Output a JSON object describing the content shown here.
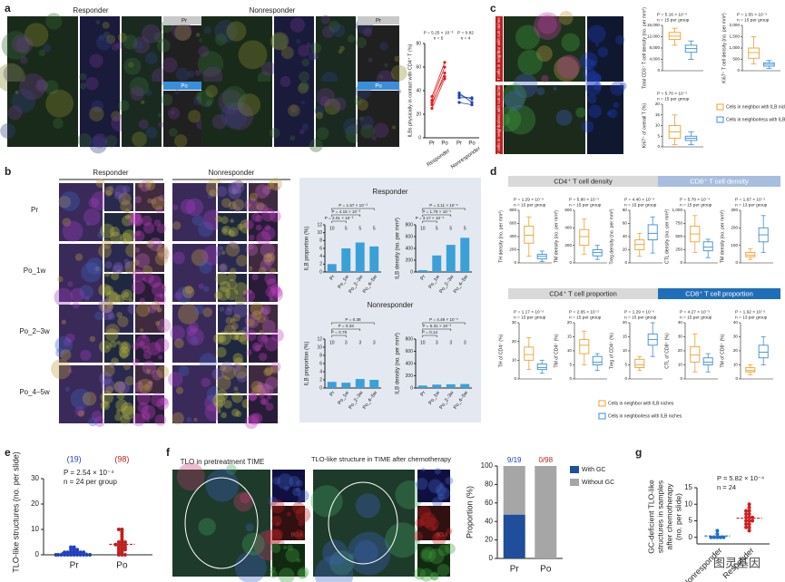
{
  "panel_labels": [
    "a",
    "b",
    "c",
    "d",
    "e",
    "f",
    "g"
  ],
  "box_legend": [
    "Cells in neighbor with ILB niches",
    "Cells in neighborless with ILB niches"
  ],
  "box_colors": [
    "#f0a030",
    "#3a8fd8"
  ],
  "a": {
    "responder": "Responder",
    "nonresponder": "Nonresponder",
    "tags": [
      "Pr",
      "Po"
    ],
    "chart": {
      "type": "line",
      "ylabel": "ILBs physically in contact with CD4⁺ T (%)",
      "categories": [
        "Pr",
        "Po",
        "Pr",
        "Po"
      ],
      "groups": [
        "Responder",
        "Nonresponder"
      ],
      "pvalues": [
        "P = 5.25 × 10⁻³",
        "P = 0.82"
      ],
      "n": [
        "n = 5",
        "n = 4"
      ],
      "ylim": [
        0,
        80
      ],
      "yticks": [
        0,
        20,
        40,
        60,
        80
      ],
      "colors": [
        "#e02020",
        "#2040c0"
      ],
      "responder_pairs": [
        [
          28,
          55
        ],
        [
          32,
          60
        ],
        [
          25,
          50
        ],
        [
          35,
          64
        ],
        [
          30,
          52
        ]
      ],
      "nonresponder_pairs": [
        [
          38,
          30
        ],
        [
          34,
          34
        ],
        [
          30,
          28
        ],
        [
          36,
          33
        ]
      ]
    }
  },
  "b": {
    "responder": "Responder",
    "nonresponder": "Nonresponder",
    "rows": [
      "Pr",
      "Po_1w",
      "Po_2–3w",
      "Po_4–5w"
    ],
    "categories": [
      "Pr",
      "Po_1w",
      "Po_2–3w",
      "Po_4–5w"
    ],
    "bar_color": "#3aa0d8",
    "charts": [
      {
        "type": "bar",
        "group": "Responder",
        "ylabel": "ILB proportion (%)",
        "ylim": [
          0,
          12
        ],
        "yticks": [
          0,
          2,
          4,
          6,
          8,
          10,
          12
        ],
        "values": [
          2,
          6,
          7.5,
          6.5
        ],
        "n": [
          10,
          5,
          5,
          5
        ],
        "pvalues": [
          "P = 1.57 × 10⁻³",
          "P = 4.15 × 10⁻³",
          "P = 2.01 × 10⁻³"
        ]
      },
      {
        "type": "bar",
        "group": "Responder",
        "ylabel": "ILB density (no. per mm²)",
        "ylim": [
          0,
          800
        ],
        "yticks": [
          0,
          200,
          400,
          600,
          800
        ],
        "values": [
          30,
          280,
          460,
          580
        ],
        "n": [
          10,
          5,
          5,
          5
        ],
        "pvalues": [
          "P = 2.11 × 10⁻⁶",
          "P = 1.79 × 10⁻⁶",
          "P = 3.17 × 10⁻⁶"
        ]
      },
      {
        "type": "bar",
        "group": "Nonresponder",
        "ylabel": "ILB proportion (%)",
        "ylim": [
          0,
          12
        ],
        "yticks": [
          0,
          2,
          4,
          6,
          8,
          10,
          12
        ],
        "values": [
          1.5,
          1.3,
          2.2,
          2.0
        ],
        "n": [
          10,
          3,
          3,
          3
        ],
        "pvalues": [
          "P = 0.38",
          "P = 0.33",
          "P = 0.79"
        ]
      },
      {
        "type": "bar",
        "group": "Nonresponder",
        "ylabel": "ILB density (no. per mm²)",
        "ylim": [
          0,
          800
        ],
        "yticks": [
          0,
          200,
          400,
          600,
          800
        ],
        "values": [
          40,
          55,
          60,
          65
        ],
        "n": [
          10,
          3,
          3,
          3
        ],
        "pvalues": [
          "P = 4.49 × 10⁻⁵",
          "P = 5.31 × 10⁻³",
          "P = 0.14"
        ]
      }
    ]
  },
  "c": {
    "side_labels": [
      "T cells in neighbor with ILB niches",
      "T cells in neighborless with ILB niches"
    ],
    "charts": [
      {
        "type": "box",
        "ylabel": "Total CD3⁺ T cell density (no. per mm²)",
        "p": "P = 5.16 × 10⁻⁶",
        "n": "n = 15 per group",
        "ylim": [
          0,
          16000
        ],
        "yticks": [
          0,
          {
            "value": 4000,
            "label": "4,000"
          },
          {
            "value": 8000,
            "label": "8,000"
          },
          {
            "value": 12000,
            "label": "12,000"
          },
          {
            "value": 16000,
            "label": "16,000"
          }
        ],
        "boxes": [
          {
            "min": 9000,
            "q1": 11000,
            "median": 12200,
            "q3": 13500,
            "max": 15000
          },
          {
            "min": 4000,
            "q1": 6500,
            "median": 7800,
            "q3": 9000,
            "max": 10500
          }
        ]
      },
      {
        "type": "box",
        "ylabel": "Ki67⁺ T cell density (no. per mm²)",
        "p": "P = 1.55 × 10⁻⁵",
        "n": "n = 15 per group",
        "ylim": [
          0,
          2000
        ],
        "yticks": [
          0,
          500,
          {
            "value": 1000,
            "label": "1,000"
          },
          {
            "value": 1500,
            "label": "1,500"
          },
          {
            "value": 2000,
            "label": "2,000"
          }
        ],
        "boxes": [
          {
            "min": 300,
            "q1": 550,
            "median": 800,
            "q3": 1000,
            "max": 1500
          },
          {
            "min": 100,
            "q1": 200,
            "median": 280,
            "q3": 350,
            "max": 450
          }
        ]
      },
      {
        "type": "box",
        "ylabel": "Ki67⁺ of overall T (%)",
        "p": "P = 5.70 × 10⁻⁵",
        "n": "n = 15 per group",
        "ylim": [
          0,
          20
        ],
        "yticks": [
          0,
          5,
          10,
          15,
          20
        ],
        "boxes": [
          {
            "min": 1,
            "q1": 4,
            "median": 7,
            "q3": 10,
            "max": 15
          },
          {
            "min": 1,
            "q1": 3,
            "median": 4,
            "q3": 5,
            "max": 7
          }
        ]
      }
    ]
  },
  "d": {
    "headers": [
      "CD4⁺ T cell density",
      "CD8⁺ T cell density",
      "CD4⁺ T cell proportion",
      "CD8⁺ T cell proportion"
    ],
    "charts": [
      {
        "type": "box",
        "ylabel": "TH density (no. per mm²)",
        "p": "P = 1.29 × 10⁻⁶",
        "n": "n = 15 per group",
        "ylim": [
          0,
          800
        ],
        "yticks": [
          0,
          200,
          400,
          600,
          800
        ],
        "boxes": [
          {
            "min": 100,
            "q1": 300,
            "median": 420,
            "q3": 560,
            "max": 700
          },
          {
            "min": 20,
            "q1": 60,
            "median": 100,
            "q3": 130,
            "max": 180
          }
        ]
      },
      {
        "type": "box",
        "ylabel": "TM density (no. per mm²)",
        "p": "P = 5.80 × 10⁻⁵",
        "n": "n = 15 per group",
        "ylim": [
          0,
          600
        ],
        "yticks": [
          0,
          200,
          400,
          600
        ],
        "boxes": [
          {
            "min": 100,
            "q1": 200,
            "median": 300,
            "q3": 380,
            "max": 500
          },
          {
            "min": 40,
            "q1": 80,
            "median": 120,
            "q3": 150,
            "max": 200
          }
        ]
      },
      {
        "type": "box",
        "ylabel": "Treg density (no. per mm²)",
        "p": "P = 4.40 × 10⁻⁵",
        "n": "n = 15 per group",
        "ylim": [
          0,
          80
        ],
        "yticks": [
          0,
          20,
          40,
          60,
          80
        ],
        "boxes": [
          {
            "min": 10,
            "q1": 20,
            "median": 28,
            "q3": 35,
            "max": 45
          },
          {
            "min": 15,
            "q1": 35,
            "median": 45,
            "q3": 58,
            "max": 70
          }
        ]
      },
      {
        "type": "box",
        "ylabel": "CTL density (no. per mm²)",
        "p": "P = 5.78 × 10⁻⁴",
        "n": "n = 15 per group",
        "ylim": [
          0,
          1000
        ],
        "yticks": [
          0,
          250,
          500,
          750,
          {
            "value": 1000,
            "label": "1,000"
          }
        ],
        "boxes": [
          {
            "min": 200,
            "q1": 400,
            "median": 550,
            "q3": 700,
            "max": 900
          },
          {
            "min": 100,
            "q1": 230,
            "median": 300,
            "q3": 400,
            "max": 450
          }
        ]
      },
      {
        "type": "box",
        "ylabel": "TM density (no. per mm²)",
        "p": "P = 1.67 × 10⁻⁵",
        "n": "n = 13 per group",
        "ylim": [
          0,
          300
        ],
        "yticks": [
          0,
          100,
          200,
          300
        ],
        "boxes": [
          {
            "min": 20,
            "q1": 35,
            "median": 45,
            "q3": 60,
            "max": 80
          },
          {
            "min": 60,
            "q1": 120,
            "median": 160,
            "q3": 200,
            "max": 270
          }
        ]
      },
      {
        "type": "box",
        "ylabel": "TH of CD4⁺ (%)",
        "p": "P = 1.17 × 10⁻⁶",
        "n": "n = 15 per group",
        "ylim": [
          0,
          30
        ],
        "yticks": [
          0,
          10,
          20,
          30
        ],
        "boxes": [
          {
            "min": 5,
            "q1": 10,
            "median": 13,
            "q3": 17,
            "max": 22
          },
          {
            "min": 3,
            "q1": 5,
            "median": 6,
            "q3": 8,
            "max": 10
          }
        ]
      },
      {
        "type": "box",
        "ylabel": "TM of CD4⁺ (%)",
        "p": "P = 2.65 × 10⁻⁵",
        "n": "n = 15 per group",
        "ylim": [
          0,
          20
        ],
        "yticks": [
          0,
          5,
          10,
          15,
          20
        ],
        "boxes": [
          {
            "min": 5,
            "q1": 9,
            "median": 12,
            "q3": 14,
            "max": 17
          },
          {
            "min": 3,
            "q1": 5,
            "median": 6,
            "q3": 8,
            "max": 9
          }
        ]
      },
      {
        "type": "box",
        "ylabel": "Treg of CD4⁺ (%)",
        "p": "P = 1.29 × 10⁻⁶",
        "n": "n = 15 per group",
        "ylim": [
          0,
          20
        ],
        "yticks": [
          0,
          5,
          10,
          15,
          20
        ],
        "boxes": [
          {
            "min": 3,
            "q1": 4,
            "median": 5,
            "q3": 7,
            "max": 8
          },
          {
            "min": 8,
            "q1": 12,
            "median": 14,
            "q3": 16,
            "max": 20
          }
        ]
      },
      {
        "type": "box",
        "ylabel": "CTL of CD8⁺ (%)",
        "p": "P = 4.27 × 10⁻⁵",
        "n": "n = 15 per group",
        "ylim": [
          0,
          40
        ],
        "yticks": [
          0,
          10,
          20,
          30,
          40
        ],
        "boxes": [
          {
            "min": 5,
            "q1": 12,
            "median": 17,
            "q3": 23,
            "max": 32
          },
          {
            "min": 5,
            "q1": 10,
            "median": 12,
            "q3": 15,
            "max": 18
          }
        ]
      },
      {
        "type": "box",
        "ylabel": "TM of CD8⁺ (%)",
        "p": "P = 1.92 × 10⁻⁵",
        "n": "n = 13 per group",
        "ylim": [
          0,
          40
        ],
        "yticks": [
          0,
          10,
          20,
          30,
          40
        ],
        "boxes": [
          {
            "min": 3,
            "q1": 5,
            "median": 6,
            "q3": 8,
            "max": 10
          },
          {
            "min": 10,
            "q1": 15,
            "median": 19,
            "q3": 24,
            "max": 30
          }
        ]
      }
    ]
  },
  "e": {
    "type": "scatter",
    "ylabel": "TLO-like structures (no. per slide)",
    "categories": [
      "Pr",
      "Po"
    ],
    "colors": [
      "#2040c0",
      "#c02020"
    ],
    "totals": [
      "(19)",
      "(98)"
    ],
    "p": "P = 2.54 × 10⁻⁴",
    "n": "n = 24 per group",
    "ylim": [
      0,
      30
    ],
    "yticks": [
      0,
      10,
      20,
      30
    ],
    "points": [
      [
        0,
        0,
        0,
        0,
        0,
        0,
        0,
        0,
        0,
        0,
        1,
        1,
        1,
        1,
        1,
        1,
        1,
        2,
        2,
        2,
        3,
        3,
        0,
        0
      ],
      [
        0,
        0,
        0,
        1,
        1,
        2,
        2,
        2,
        3,
        3,
        3,
        4,
        4,
        4,
        5,
        5,
        5,
        6,
        7,
        8,
        9,
        10,
        10,
        4
      ]
    ],
    "mean": [
      0.8,
      4.1
    ],
    "sd": [
      1,
      3
    ]
  },
  "f": {
    "titles": [
      "TLO in pretreatment TIME",
      "TLO-like structure in TIME after chemotherapy"
    ],
    "stain": "BCL6",
    "chart": {
      "type": "stacked_bar",
      "ylabel": "Proportion (%)",
      "categories": [
        "Pr",
        "Po"
      ],
      "fractions": [
        "9/19",
        "0/98"
      ],
      "fraction_colors": [
        "#2040c0",
        "#c02020"
      ],
      "ylim": [
        0,
        100
      ],
      "yticks": [
        0,
        20,
        40,
        60,
        80,
        100
      ],
      "series": [
        {
          "name": "With GC",
          "color": "#1f4e9a",
          "values": [
            47.4,
            0
          ]
        },
        {
          "name": "Without GC",
          "color": "#a6a6a6",
          "values": [
            52.6,
            100
          ]
        }
      ]
    }
  },
  "g": {
    "type": "scatter",
    "ylabel": [
      "GC-deficient TLO-like",
      "structures in samples",
      "after chemotherapy",
      "(no. per slide)"
    ],
    "categories": [
      "Nonresponder",
      "Responder"
    ],
    "colors": [
      "#2070d0",
      "#d02020"
    ],
    "p": "P = 5.82 × 10⁻⁴",
    "n": "n = 24",
    "ylim": [
      -2,
      15
    ],
    "yticks": [
      0,
      5,
      10,
      15
    ],
    "points": [
      [
        0,
        0,
        0,
        0,
        0,
        1,
        2
      ],
      [
        2,
        3,
        3,
        4,
        4,
        5,
        5,
        5,
        6,
        6,
        6,
        7,
        7,
        8,
        8,
        9,
        10
      ]
    ],
    "mean": [
      0.4,
      5.8
    ],
    "sd": [
      0.8,
      2.3
    ]
  },
  "watermark": "图灵基因"
}
